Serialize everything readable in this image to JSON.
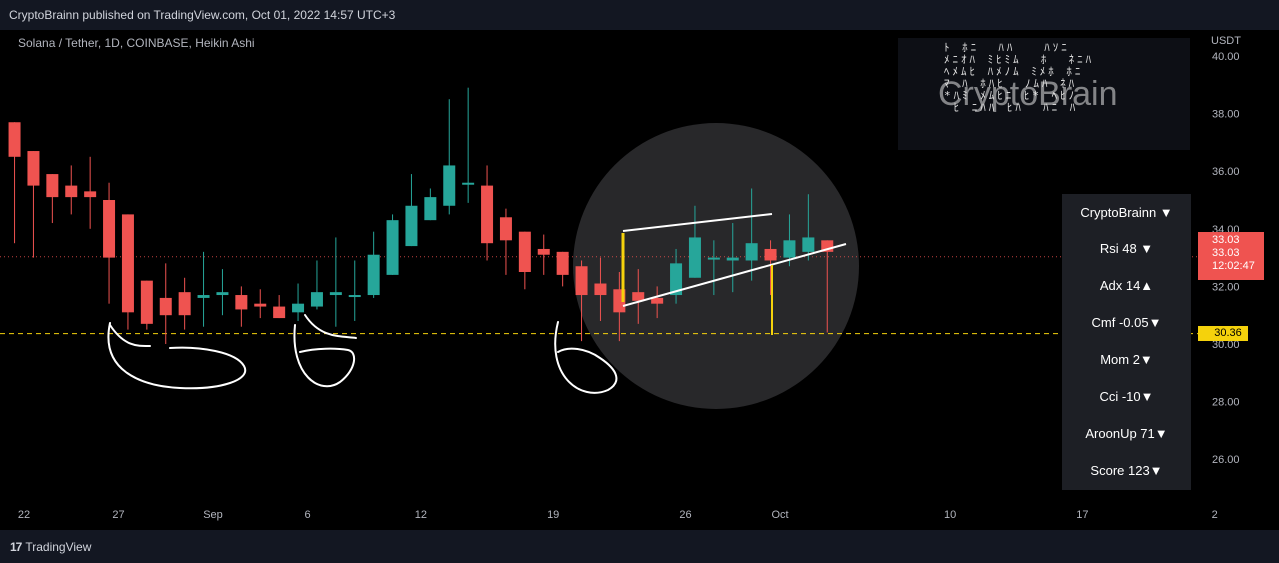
{
  "header": {
    "title": "CryptoBrainn published on TradingView.com, Oct 01, 2022 14:57 UTC+3"
  },
  "symbol": "Solana / Tether, 1D, COINBASE, Heikin Ashi",
  "currency": "USDT",
  "watermark": {
    "text": "CryptoBrain"
  },
  "indicators": [
    {
      "label": "CryptoBrainn ▼"
    },
    {
      "label": "Rsi  48 ▼"
    },
    {
      "label": "Adx  14▲"
    },
    {
      "label": "Cmf -0.05▼"
    },
    {
      "label": "Mom  2▼"
    },
    {
      "label": "Cci   -10▼"
    },
    {
      "label": "AroonUp  71▼"
    },
    {
      "label": "Score  123▼"
    }
  ],
  "price_tags": {
    "current_a": "33.03",
    "current_b": "33.03",
    "countdown": "12:02:47",
    "support": "30.36"
  },
  "footer": {
    "brand": "TradingView",
    "logo": "17"
  },
  "colors": {
    "up": "#26a69a",
    "down": "#ef5350",
    "support": "#f5d20c",
    "background": "#000000",
    "panel": "#131722"
  },
  "chart_data": {
    "type": "candlestick",
    "style": "Heikin Ashi",
    "title": "Solana / Tether, 1D, COINBASE, Heikin Ashi",
    "ylabel": "USDT",
    "ylim": [
      24.8,
      41.0
    ],
    "y_ticks": [
      "40.00",
      "38.00",
      "36.00",
      "34.00",
      "32.00",
      "30.00",
      "28.00",
      "26.00"
    ],
    "x_ticks": [
      "22",
      "27",
      "Sep",
      "6",
      "12",
      "19",
      "26",
      "Oct",
      "10",
      "17",
      "2"
    ],
    "x_tick_days": [
      0,
      5,
      10,
      15,
      21,
      28,
      35,
      40,
      49,
      56,
      63
    ],
    "grid": false,
    "support_level": 30.36,
    "current_price": 33.03,
    "candles": [
      {
        "d": -0.5,
        "o": 37.7,
        "c": 36.5,
        "h": 37.7,
        "l": 33.5
      },
      {
        "d": 0.5,
        "o": 36.7,
        "c": 35.5,
        "h": 36.7,
        "l": 33.0
      },
      {
        "d": 1.5,
        "o": 35.9,
        "c": 35.1,
        "h": 35.9,
        "l": 34.2
      },
      {
        "d": 2.5,
        "o": 35.5,
        "c": 35.1,
        "h": 36.2,
        "l": 34.5
      },
      {
        "d": 3.5,
        "o": 35.3,
        "c": 35.1,
        "h": 36.5,
        "l": 34.0
      },
      {
        "d": 4.5,
        "o": 35.0,
        "c": 33.0,
        "h": 35.6,
        "l": 31.4
      },
      {
        "d": 5.5,
        "o": 34.5,
        "c": 31.1,
        "h": 34.5,
        "l": 30.5
      },
      {
        "d": 6.5,
        "o": 32.2,
        "c": 30.7,
        "h": 32.2,
        "l": 30.5
      },
      {
        "d": 7.5,
        "o": 31.6,
        "c": 31.0,
        "h": 32.8,
        "l": 30.0
      },
      {
        "d": 8.5,
        "o": 31.8,
        "c": 31.0,
        "h": 32.3,
        "l": 30.5
      },
      {
        "d": 9.5,
        "o": 31.6,
        "c": 31.7,
        "h": 33.2,
        "l": 30.6
      },
      {
        "d": 10.5,
        "o": 31.7,
        "c": 31.8,
        "h": 32.6,
        "l": 31.0
      },
      {
        "d": 11.5,
        "o": 31.7,
        "c": 31.2,
        "h": 32.0,
        "l": 30.6
      },
      {
        "d": 12.5,
        "o": 31.4,
        "c": 31.3,
        "h": 31.9,
        "l": 30.9
      },
      {
        "d": 13.5,
        "o": 31.3,
        "c": 30.9,
        "h": 31.7,
        "l": 30.9
      },
      {
        "d": 14.5,
        "o": 31.1,
        "c": 31.4,
        "h": 32.1,
        "l": 30.8
      },
      {
        "d": 15.5,
        "o": 31.3,
        "c": 31.8,
        "h": 32.9,
        "l": 31.2
      },
      {
        "d": 16.5,
        "o": 31.7,
        "c": 31.8,
        "h": 33.7,
        "l": 30.6
      },
      {
        "d": 17.5,
        "o": 31.7,
        "c": 31.7,
        "h": 32.9,
        "l": 30.8
      },
      {
        "d": 18.5,
        "o": 31.7,
        "c": 33.1,
        "h": 33.9,
        "l": 31.6
      },
      {
        "d": 19.5,
        "o": 32.4,
        "c": 34.3,
        "h": 34.5,
        "l": 32.4
      },
      {
        "d": 20.5,
        "o": 33.4,
        "c": 34.8,
        "h": 35.9,
        "l": 33.4
      },
      {
        "d": 21.5,
        "o": 34.3,
        "c": 35.1,
        "h": 35.4,
        "l": 34.3
      },
      {
        "d": 22.5,
        "o": 34.8,
        "c": 36.2,
        "h": 38.5,
        "l": 34.5
      },
      {
        "d": 23.5,
        "o": 35.6,
        "c": 35.6,
        "h": 38.9,
        "l": 34.9
      },
      {
        "d": 24.5,
        "o": 35.5,
        "c": 33.5,
        "h": 36.2,
        "l": 32.9
      },
      {
        "d": 25.5,
        "o": 34.4,
        "c": 33.6,
        "h": 34.7,
        "l": 32.4
      },
      {
        "d": 26.5,
        "o": 33.9,
        "c": 32.5,
        "h": 33.9,
        "l": 31.9
      },
      {
        "d": 27.5,
        "o": 33.3,
        "c": 33.1,
        "h": 33.8,
        "l": 32.4
      },
      {
        "d": 28.5,
        "o": 33.2,
        "c": 32.4,
        "h": 33.2,
        "l": 32.0
      },
      {
        "d": 29.5,
        "o": 32.7,
        "c": 31.7,
        "h": 32.9,
        "l": 30.1
      },
      {
        "d": 30.5,
        "o": 32.1,
        "c": 31.7,
        "h": 33.0,
        "l": 30.8
      },
      {
        "d": 31.5,
        "o": 31.9,
        "c": 31.1,
        "h": 32.5,
        "l": 30.1
      },
      {
        "d": 32.5,
        "o": 31.8,
        "c": 31.5,
        "h": 32.6,
        "l": 30.7
      },
      {
        "d": 33.5,
        "o": 31.6,
        "c": 31.4,
        "h": 32.0,
        "l": 30.9
      },
      {
        "d": 34.5,
        "o": 31.7,
        "c": 32.8,
        "h": 33.3,
        "l": 31.4
      },
      {
        "d": 35.5,
        "o": 32.3,
        "c": 33.7,
        "h": 34.8,
        "l": 32.3
      },
      {
        "d": 36.5,
        "o": 33.0,
        "c": 33.0,
        "h": 33.6,
        "l": 31.7
      },
      {
        "d": 37.5,
        "o": 32.9,
        "c": 33.0,
        "h": 34.2,
        "l": 31.8
      },
      {
        "d": 38.5,
        "o": 32.9,
        "c": 33.5,
        "h": 35.4,
        "l": 32.2
      },
      {
        "d": 39.5,
        "o": 33.3,
        "c": 32.9,
        "h": 33.6,
        "l": 31.7
      },
      {
        "d": 40.5,
        "o": 33.0,
        "c": 33.6,
        "h": 34.5,
        "l": 32.7
      },
      {
        "d": 41.5,
        "o": 33.2,
        "c": 33.7,
        "h": 35.2,
        "l": 32.9
      },
      {
        "d": 42.5,
        "o": 33.6,
        "c": 33.2,
        "h": 33.6,
        "l": 30.4
      }
    ]
  }
}
